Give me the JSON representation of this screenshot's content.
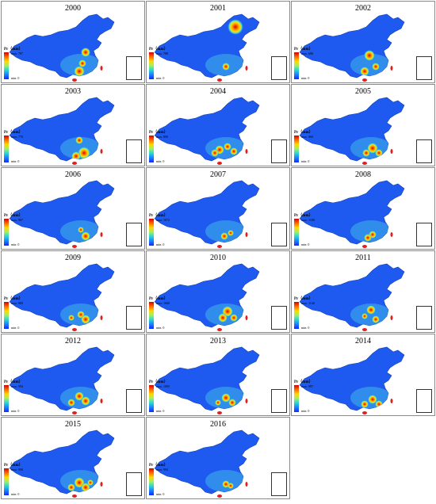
{
  "legend_title": "Pr（mm）",
  "panels": [
    {
      "year": "2000",
      "max": "max: 787",
      "min": "min: 0"
    },
    {
      "year": "2001",
      "max": "max: 788",
      "min": "min: 0"
    },
    {
      "year": "2002",
      "max": "max: 688",
      "min": "min: 0"
    },
    {
      "year": "2003",
      "max": "max: 770",
      "min": "min: 0"
    },
    {
      "year": "2004",
      "max": "max: 800",
      "min": "min: 0"
    },
    {
      "year": "2005",
      "max": "max: 860",
      "min": "min: 0"
    },
    {
      "year": "2006",
      "max": "max: 967",
      "min": "min: 0"
    },
    {
      "year": "2007",
      "max": "max: 1072",
      "min": "min: 0"
    },
    {
      "year": "2008",
      "max": "max: 1100",
      "min": "min: 0"
    },
    {
      "year": "2009",
      "max": "max: 889",
      "min": "min: 0"
    },
    {
      "year": "2010",
      "max": "max: 1060",
      "min": "min: 0"
    },
    {
      "year": "2011",
      "max": "max: 1140",
      "min": "min: 0"
    },
    {
      "year": "2012",
      "max": "max: 994",
      "min": "min: 0"
    },
    {
      "year": "2013",
      "max": "max: 1005",
      "min": "min: 0"
    },
    {
      "year": "2014",
      "max": "max: 987",
      "min": "min: 0"
    },
    {
      "year": "2015",
      "max": "max: 990",
      "min": "min: 0"
    },
    {
      "year": "2016",
      "max": "max: 994",
      "min": "min: 0"
    }
  ],
  "colors": {
    "low": "#0a2cff",
    "mid": "#23d6d6",
    "high": "#d40000"
  }
}
